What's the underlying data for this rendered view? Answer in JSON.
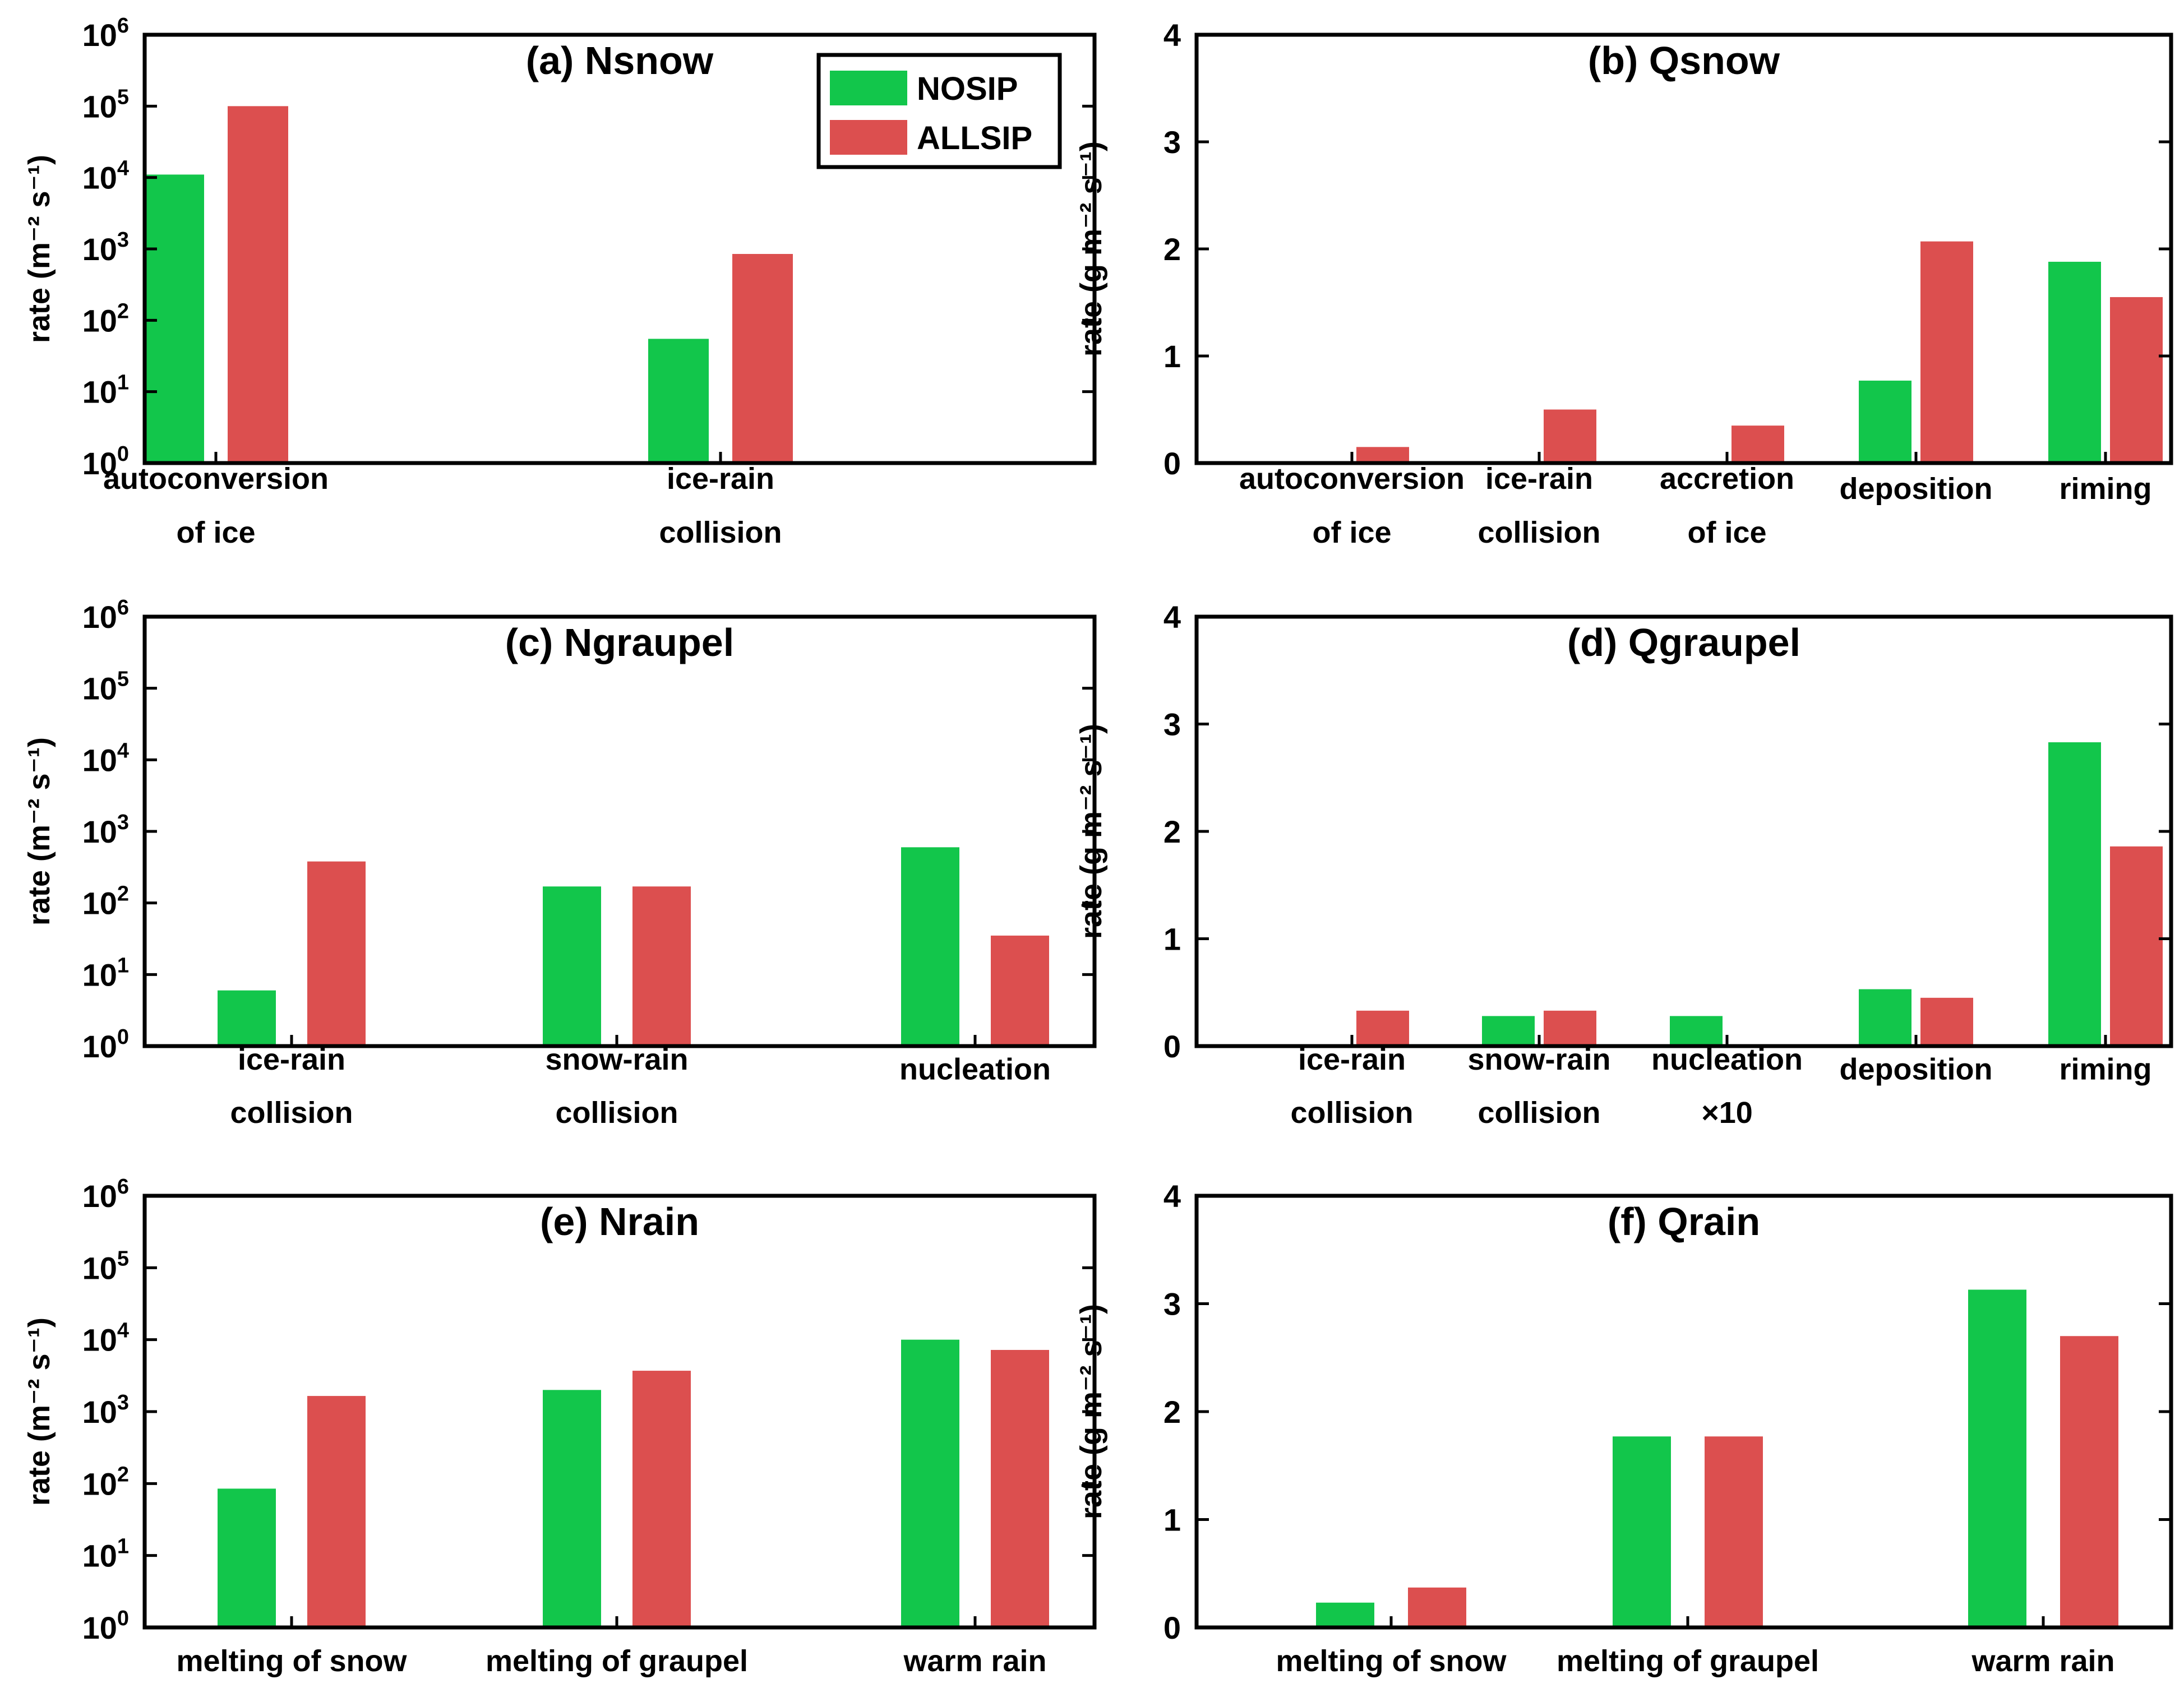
{
  "colors": {
    "nosip": "#12c64b",
    "allsip": "#dc4f4f",
    "axis": "#000000"
  },
  "chart_data": [
    {
      "id": "a",
      "type": "bar",
      "scale": "log",
      "title": "(a) Nsnow",
      "ylabel": "rate (m⁻² s⁻¹)",
      "ylim": [
        1,
        1000000
      ],
      "yticks": [
        {
          "base": "10",
          "exp": "0"
        },
        {
          "base": "10",
          "exp": "1"
        },
        {
          "base": "10",
          "exp": "2"
        },
        {
          "base": "10",
          "exp": "3"
        },
        {
          "base": "10",
          "exp": "4"
        },
        {
          "base": "10",
          "exp": "5"
        },
        {
          "base": "10",
          "exp": "6"
        }
      ],
      "categories": [
        [
          "autoconversion",
          "of ice"
        ],
        [
          "ice-rain",
          "collision"
        ]
      ],
      "series": [
        {
          "name": "NOSIP",
          "values": [
            11000,
            55
          ]
        },
        {
          "name": "ALLSIP",
          "values": [
            100000,
            850
          ]
        }
      ],
      "legend": {
        "position": "top-right",
        "entries": [
          "NOSIP",
          "ALLSIP"
        ]
      }
    },
    {
      "id": "b",
      "type": "bar",
      "scale": "linear",
      "title": "(b) Qsnow",
      "ylabel": "rate (g m⁻² s⁻¹)",
      "ylim": [
        0,
        4
      ],
      "yticks": [
        "0",
        "1",
        "2",
        "3",
        "4"
      ],
      "categories": [
        [
          "autoconversion",
          "of ice"
        ],
        [
          "ice-rain",
          "collision"
        ],
        [
          "accretion",
          "of ice"
        ],
        [
          "deposition"
        ],
        [
          "riming"
        ]
      ],
      "series": [
        {
          "name": "NOSIP",
          "values": [
            0,
            0,
            0,
            0.77,
            1.88
          ]
        },
        {
          "name": "ALLSIP",
          "values": [
            0.15,
            0.5,
            0.35,
            2.07,
            1.55
          ]
        }
      ]
    },
    {
      "id": "c",
      "type": "bar",
      "scale": "log",
      "title": "(c) Ngraupel",
      "ylabel": "rate (m⁻² s⁻¹)",
      "ylim": [
        1,
        1000000
      ],
      "yticks": [
        {
          "base": "10",
          "exp": "0"
        },
        {
          "base": "10",
          "exp": "1"
        },
        {
          "base": "10",
          "exp": "2"
        },
        {
          "base": "10",
          "exp": "3"
        },
        {
          "base": "10",
          "exp": "4"
        },
        {
          "base": "10",
          "exp": "5"
        },
        {
          "base": "10",
          "exp": "6"
        }
      ],
      "categories": [
        [
          "ice-rain",
          "collision"
        ],
        [
          "snow-rain",
          "collision"
        ],
        [
          "nucleation"
        ]
      ],
      "series": [
        {
          "name": "NOSIP",
          "values": [
            6,
            170,
            600
          ]
        },
        {
          "name": "ALLSIP",
          "values": [
            380,
            170,
            35
          ]
        }
      ]
    },
    {
      "id": "d",
      "type": "bar",
      "scale": "linear",
      "title": "(d) Qgraupel",
      "ylabel": "rate (g m⁻² s⁻¹)",
      "ylim": [
        0,
        4
      ],
      "yticks": [
        "0",
        "1",
        "2",
        "3",
        "4"
      ],
      "categories": [
        [
          "ice-rain",
          "collision"
        ],
        [
          "snow-rain",
          "collision"
        ],
        [
          "nucleation",
          "×10"
        ],
        [
          "deposition"
        ],
        [
          "riming"
        ]
      ],
      "series": [
        {
          "name": "NOSIP",
          "values": [
            0.01,
            0.28,
            0.28,
            0.53,
            2.83
          ]
        },
        {
          "name": "ALLSIP",
          "values": [
            0.33,
            0.33,
            0.01,
            0.45,
            1.86
          ]
        }
      ]
    },
    {
      "id": "e",
      "type": "bar",
      "scale": "log",
      "title": "(e) Nrain",
      "ylabel": "rate (m⁻² s⁻¹)",
      "ylim": [
        1,
        1000000
      ],
      "yticks": [
        {
          "base": "10",
          "exp": "0"
        },
        {
          "base": "10",
          "exp": "1"
        },
        {
          "base": "10",
          "exp": "2"
        },
        {
          "base": "10",
          "exp": "3"
        },
        {
          "base": "10",
          "exp": "4"
        },
        {
          "base": "10",
          "exp": "5"
        },
        {
          "base": "10",
          "exp": "6"
        }
      ],
      "categories": [
        [
          "melting of snow"
        ],
        [
          "melting of graupel"
        ],
        [
          "warm rain"
        ]
      ],
      "series": [
        {
          "name": "NOSIP",
          "values": [
            85,
            2000,
            10000
          ]
        },
        {
          "name": "ALLSIP",
          "values": [
            1650,
            3700,
            7200
          ]
        }
      ]
    },
    {
      "id": "f",
      "type": "bar",
      "scale": "linear",
      "title": "(f) Qrain",
      "ylabel": "rate (g m⁻² s⁻¹)",
      "ylim": [
        0,
        4
      ],
      "yticks": [
        "0",
        "1",
        "2",
        "3",
        "4"
      ],
      "categories": [
        [
          "melting of snow"
        ],
        [
          "melting of graupel"
        ],
        [
          "warm rain"
        ]
      ],
      "series": [
        {
          "name": "NOSIP",
          "values": [
            0.23,
            1.77,
            3.13
          ]
        },
        {
          "name": "ALLSIP",
          "values": [
            0.37,
            1.77,
            2.7
          ]
        }
      ]
    }
  ]
}
